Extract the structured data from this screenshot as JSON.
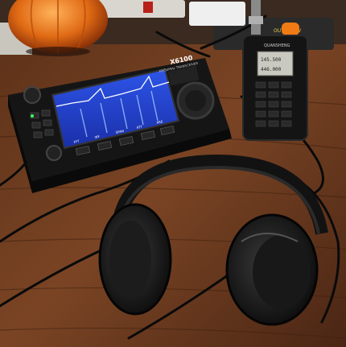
{
  "scene": {
    "description_alt": "Ham radio desk with transceiver, handheld radio and headphones"
  },
  "transceiver": {
    "model": "X6100",
    "subtitle": "HF/50MHz TRANSCEIVER",
    "screen_buttons": [
      "FFT",
      "WF",
      "SPAN",
      "ATT",
      "PRE"
    ]
  },
  "handheld": {
    "brand": "QUANSHENG",
    "display_line1": "145.500",
    "display_line2": "446.000"
  },
  "power_strip": {
    "label": "OUTPUT 5V"
  },
  "colors": {
    "table": "#6b3a1f",
    "screen": "#1e3fd0",
    "pumpkin": "#e8701a"
  }
}
